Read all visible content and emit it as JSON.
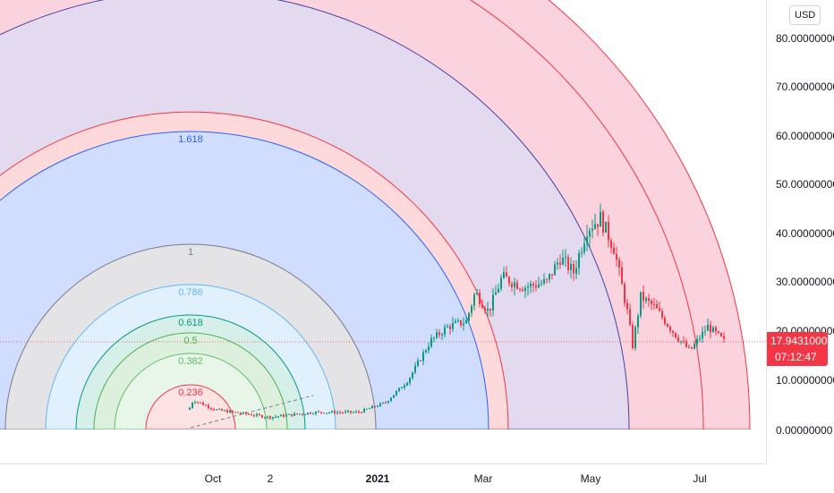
{
  "currency": "USD",
  "price_axis": {
    "ticks": [
      "80.00000000",
      "70.00000000",
      "60.00000000",
      "50.00000000",
      "40.00000000",
      "30.00000000",
      "20.00000000",
      "10.00000000",
      "0.00000000"
    ]
  },
  "current_price": {
    "value": "17.94310000",
    "countdown": "07:12:47",
    "color": "#f23645"
  },
  "time_axis": {
    "labels": [
      "Oct",
      "2",
      "2021",
      "Mar",
      "May",
      "Jul"
    ]
  },
  "fib_levels": [
    {
      "label": "0.236",
      "color": "#f23645",
      "fill": "#fde3e3"
    },
    {
      "label": "0.382",
      "color": "#66bb6a",
      "fill": "#e8f5e9"
    },
    {
      "label": "0.5",
      "color": "#4caf50",
      "fill": "#ddf0de"
    },
    {
      "label": "0.618",
      "color": "#089981",
      "fill": "#d6efe9"
    },
    {
      "label": "0.786",
      "color": "#64b5f6",
      "fill": "#e1f0fd"
    },
    {
      "label": "1",
      "color": "#787b86",
      "fill": "#e4e4e6"
    },
    {
      "label": "1.618",
      "color": "#2962ff",
      "fill": "#d1ddff"
    }
  ],
  "colors": {
    "candle_up": "#089981",
    "candle_down": "#f23645",
    "arc_red": "#f23645",
    "arc_blue": "#2962ff",
    "outer_fill_red": "#fdd9db",
    "outer_fill_purple": "#e4daf0",
    "outer_fill_pink": "#fad3de"
  }
}
